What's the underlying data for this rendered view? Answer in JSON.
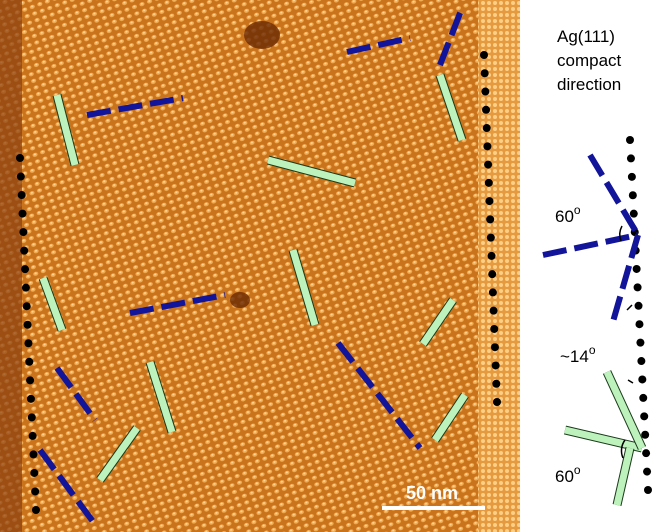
{
  "legend": {
    "lines": [
      "Ag(111)",
      "compact",
      "direction"
    ]
  },
  "annotations": [
    {
      "text": "60",
      "superscript": "o"
    },
    {
      "text": "~14",
      "superscript": "o"
    },
    {
      "text": "60",
      "superscript": "o"
    }
  ],
  "scale_bar": "50 nm"
}
